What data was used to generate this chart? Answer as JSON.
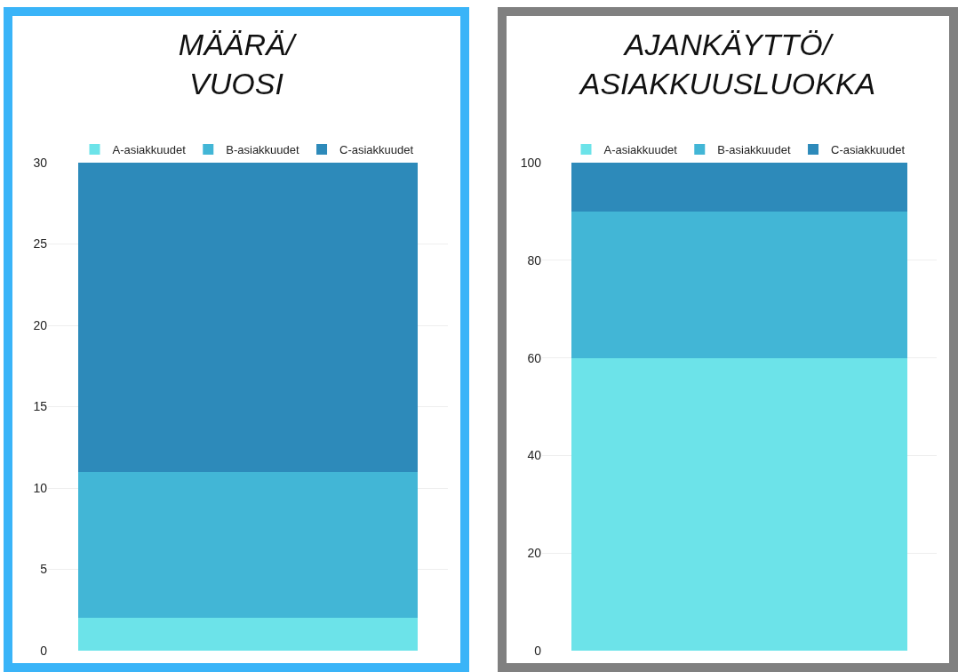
{
  "chart_data": [
    {
      "type": "bar",
      "title": "MÄÄRÄ/\nVUOSI",
      "stacked": true,
      "categories": [
        null
      ],
      "ylim": [
        0,
        30
      ],
      "yticks": [
        0,
        5,
        10,
        15,
        20,
        25,
        30
      ],
      "grid": "y",
      "legend": "top",
      "tick_labels": "y",
      "series": [
        {
          "name": "A-asiakkuudet",
          "color": "#6ce3e9",
          "values": [
            2
          ]
        },
        {
          "name": "B-asiakkuudet",
          "color": "#42b6d6",
          "values": [
            9
          ]
        },
        {
          "name": "C-asiakkuudet",
          "color": "#2d8aba",
          "values": [
            19
          ]
        }
      ]
    },
    {
      "type": "bar",
      "title": "AJANKÄYTTÖ/\nASIAKKUUSLUOKKA",
      "stacked": true,
      "categories": [
        null
      ],
      "ylim": [
        0,
        100
      ],
      "yticks": [
        0,
        20,
        40,
        60,
        80,
        100
      ],
      "grid": "y",
      "legend": "top",
      "tick_labels": "y",
      "series": [
        {
          "name": "A-asiakkuudet",
          "color": "#6ce3e9",
          "values": [
            60
          ]
        },
        {
          "name": "B-asiakkuudet",
          "color": "#42b6d6",
          "values": [
            30
          ]
        },
        {
          "name": "C-asiakkuudet",
          "color": "#2d8aba",
          "values": [
            10
          ]
        }
      ]
    }
  ]
}
